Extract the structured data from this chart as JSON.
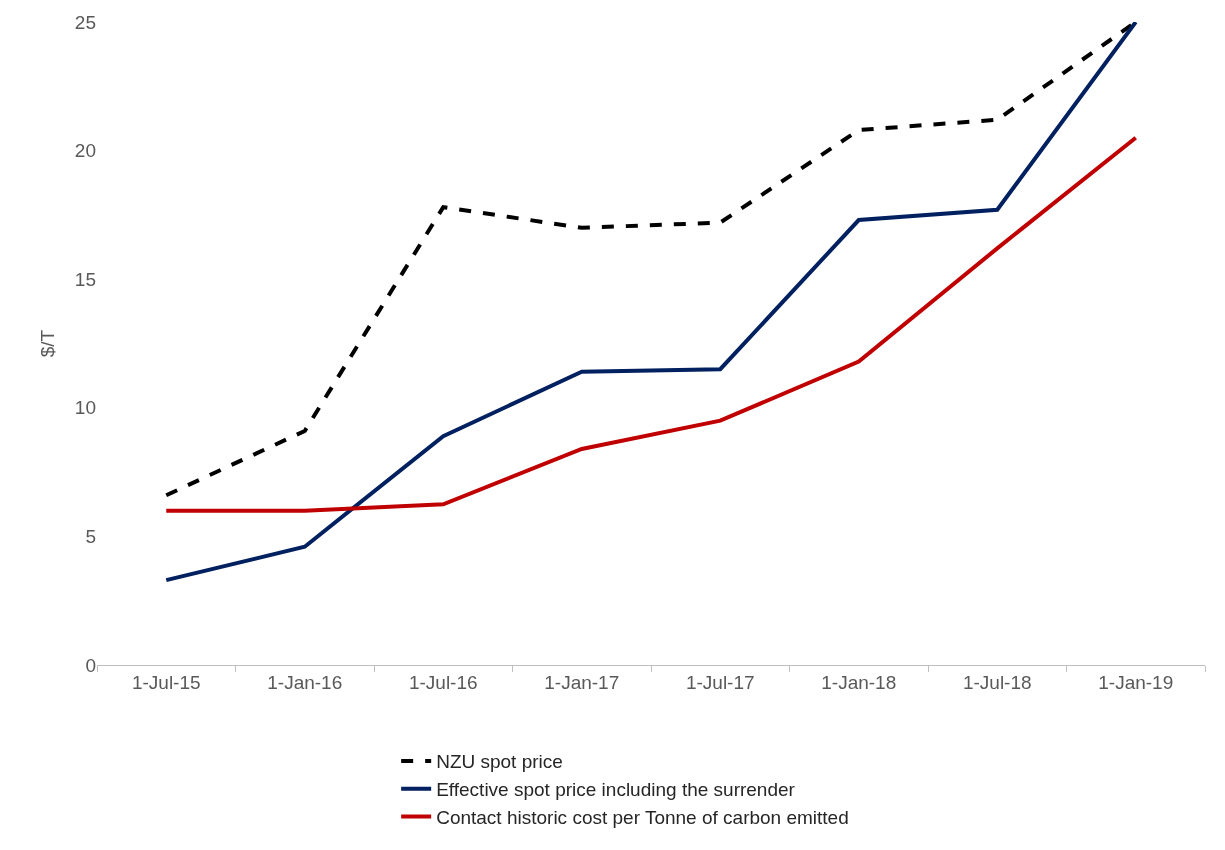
{
  "chart_data": {
    "type": "line",
    "ylabel": "$/T",
    "categories": [
      "1-Jul-15",
      "1-Jan-16",
      "1-Jul-16",
      "1-Jan-17",
      "1-Jul-17",
      "1-Jan-18",
      "1-Jul-18",
      "1-Jan-19"
    ],
    "ylim": [
      0,
      25
    ],
    "yticks": [
      0,
      5,
      10,
      15,
      20,
      25
    ],
    "grid": false,
    "legend": "bottom",
    "marker": "none",
    "series": [
      {
        "name": "NZU spot price",
        "color": "#000000",
        "line_style": "dashed",
        "values": [
          6.6,
          9.1,
          17.8,
          17.0,
          17.2,
          20.8,
          21.2,
          25.0
        ]
      },
      {
        "name": "Effective spot price including the surrender",
        "color": "#002060",
        "line_style": "solid",
        "values": [
          3.3,
          4.6,
          8.9,
          11.4,
          11.5,
          17.3,
          17.7,
          25.0
        ]
      },
      {
        "name": "Contact historic cost per Tonne of carbon emitted",
        "color": "#c00000",
        "line_style": "solid",
        "values": [
          6.0,
          6.0,
          6.25,
          8.4,
          9.5,
          11.8,
          16.2,
          20.5
        ]
      }
    ]
  }
}
